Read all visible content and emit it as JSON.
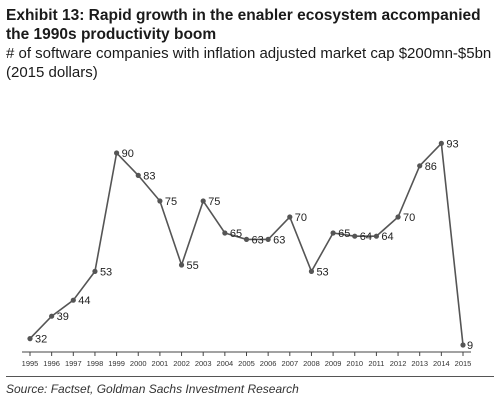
{
  "header": {
    "title": "Exhibit 13: Rapid growth in the enabler ecosystem accompanied the 1990s productivity boom",
    "subtitle": "# of software companies with inflation adjusted market cap $200mn-$5bn (2015 dollars)"
  },
  "source": "Source: Factset, Goldman Sachs Investment Research",
  "chart_data": {
    "type": "line",
    "categories": [
      "1995",
      "1996",
      "1997",
      "1998",
      "1999",
      "2000",
      "2001",
      "2002",
      "2003",
      "2004",
      "2005",
      "2006",
      "2007",
      "2008",
      "2009",
      "2010",
      "2011",
      "2012",
      "2013",
      "2014",
      "2015"
    ],
    "series": [
      {
        "values": [
          32,
          39,
          44,
          53,
          90,
          83,
          75,
          55,
          75,
          65,
          63,
          63,
          70,
          53,
          65,
          64,
          64,
          70,
          86,
          93,
          9
        ]
      }
    ],
    "ylim": [
      30,
      95
    ],
    "grid": false,
    "legend": "none",
    "line_color": "#555555",
    "marker_color": "#555555"
  }
}
